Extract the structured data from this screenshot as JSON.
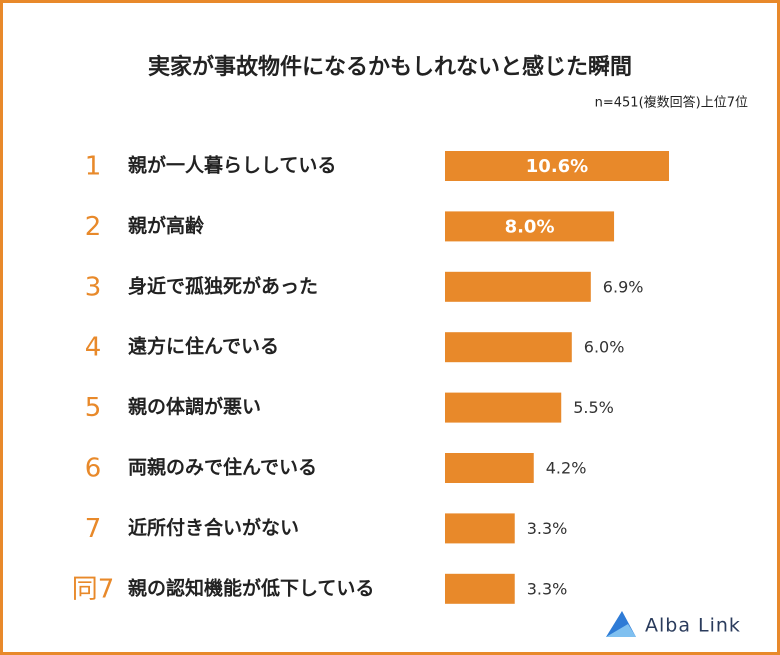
{
  "chart_data": {
    "type": "bar",
    "orientation": "horizontal",
    "title": "実家が事故物件になるかもしれないと感じた瞬間",
    "subtitle": "n=451(複数回答)上位7位",
    "ranks": [
      "1",
      "2",
      "3",
      "4",
      "5",
      "6",
      "7",
      "同7"
    ],
    "categories": [
      "親が一人暮らししている",
      "親が高齢",
      "身近で孤独死があった",
      "遠方に住んでいる",
      "親の体調が悪い",
      "両親のみで住んでいる",
      "近所付き合いがない",
      "親の認知機能が低下している"
    ],
    "values": [
      10.6,
      8.0,
      6.9,
      6.0,
      5.5,
      4.2,
      3.3,
      3.3
    ],
    "value_labels": [
      "10.6%",
      "8.0%",
      "6.9%",
      "6.0%",
      "5.5%",
      "4.2%",
      "3.3%",
      "3.3%"
    ],
    "color": "#e8892a",
    "logo": "Alba Link"
  }
}
